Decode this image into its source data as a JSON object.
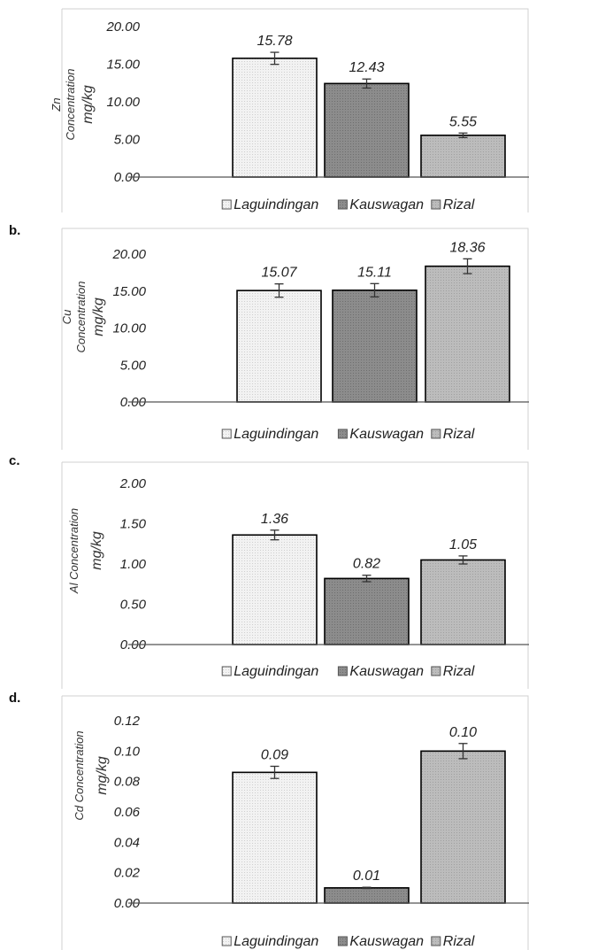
{
  "chart_data": [
    {
      "type": "bar",
      "panel_label": "",
      "categories": [
        "Laguindingan",
        "Kauswagan",
        "Rizal"
      ],
      "values": [
        15.78,
        12.43,
        5.55
      ],
      "data_labels": [
        "15.78",
        "12.43",
        "5.55"
      ],
      "error_bars": [
        0.8,
        0.6,
        0.3
      ],
      "ylabel_lines": [
        "Zn",
        "Concentration",
        "mg/kg"
      ],
      "ylim": [
        0,
        20
      ],
      "yticks": [
        "0.00",
        "5.00",
        "10.00",
        "15.00",
        "20.00"
      ],
      "legend": [
        "Laguindingan",
        "Kauswagan",
        "Rizal"
      ],
      "legend_placement": "bottom",
      "grid": false
    },
    {
      "type": "bar",
      "panel_label": "b.",
      "categories": [
        "Laguindingan",
        "Kauswagan",
        "Rizal"
      ],
      "values": [
        15.07,
        15.11,
        18.36
      ],
      "data_labels": [
        "15.07",
        "15.11",
        "18.36"
      ],
      "error_bars": [
        0.9,
        0.9,
        1.0
      ],
      "ylabel_lines": [
        "Cu",
        "Concentration",
        "mg/kg"
      ],
      "ylim": [
        0,
        20
      ],
      "yticks": [
        "0.00",
        "5.00",
        "10.00",
        "15.00",
        "20.00"
      ],
      "legend": [
        "Laguindingan",
        "Kauswagan",
        "Rizal"
      ],
      "legend_placement": "bottom",
      "grid": false
    },
    {
      "type": "bar",
      "panel_label": "c.",
      "categories": [
        "Laguindingan",
        "Kauswagan",
        "Rizal"
      ],
      "values": [
        1.36,
        0.82,
        1.05
      ],
      "data_labels": [
        "1.36",
        "0.82",
        "1.05"
      ],
      "error_bars": [
        0.06,
        0.04,
        0.05
      ],
      "ylabel_lines": [
        "Al Concentration",
        "mg/kg"
      ],
      "ylim": [
        0,
        2
      ],
      "yticks": [
        "0.00",
        "0.50",
        "1.00",
        "1.50",
        "2.00"
      ],
      "legend": [
        "Laguindingan",
        "Kauswagan",
        "Rizal"
      ],
      "legend_placement": "bottom",
      "grid": false
    },
    {
      "type": "bar",
      "panel_label": "d.",
      "categories": [
        "Laguindingan",
        "Kauswagan",
        "Rizal"
      ],
      "values": [
        0.086,
        0.01,
        0.1
      ],
      "data_labels": [
        "0.09",
        "0.01",
        "0.10"
      ],
      "error_bars": [
        0.004,
        0.0004,
        0.005
      ],
      "ylabel_lines": [
        "Cd Concentration",
        "mg/kg"
      ],
      "ylim": [
        0,
        0.12
      ],
      "yticks": [
        "0.00",
        "0.02",
        "0.04",
        "0.06",
        "0.08",
        "0.10",
        "0.12"
      ],
      "legend": [
        "Laguindingan",
        "Kauswagan",
        "Rizal"
      ],
      "legend_placement": "bottom",
      "grid": false
    }
  ],
  "series_colors": [
    "#f2f2f2",
    "#8c8c8c",
    "#bcbcbc"
  ]
}
